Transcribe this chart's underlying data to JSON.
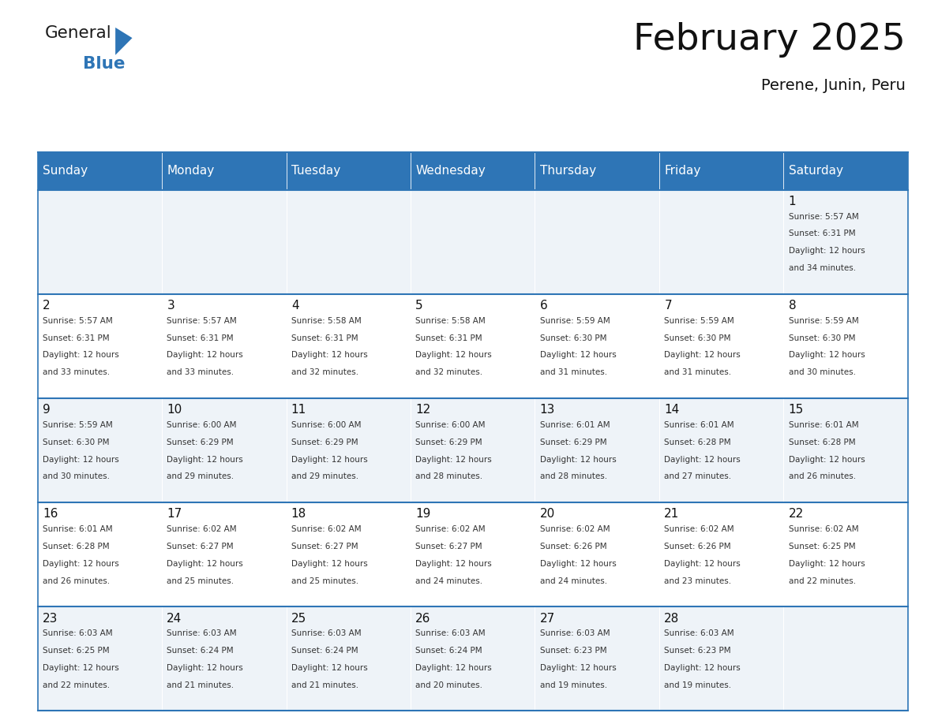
{
  "title": "February 2025",
  "subtitle": "Perene, Junin, Peru",
  "header_bg": "#2E75B6",
  "header_text_color": "#FFFFFF",
  "cell_bg_light": "#EEF3F8",
  "cell_bg_white": "#FFFFFF",
  "separator_color": "#2E75B6",
  "text_color": "#222222",
  "info_color": "#333333",
  "day_headers": [
    "Sunday",
    "Monday",
    "Tuesday",
    "Wednesday",
    "Thursday",
    "Friday",
    "Saturday"
  ],
  "calendar": [
    [
      null,
      null,
      null,
      null,
      null,
      null,
      {
        "day": 1,
        "sunrise": "5:57 AM",
        "sunset": "6:31 PM",
        "daylight1": "12 hours",
        "daylight2": "and 34 minutes."
      }
    ],
    [
      {
        "day": 2,
        "sunrise": "5:57 AM",
        "sunset": "6:31 PM",
        "daylight1": "12 hours",
        "daylight2": "and 33 minutes."
      },
      {
        "day": 3,
        "sunrise": "5:57 AM",
        "sunset": "6:31 PM",
        "daylight1": "12 hours",
        "daylight2": "and 33 minutes."
      },
      {
        "day": 4,
        "sunrise": "5:58 AM",
        "sunset": "6:31 PM",
        "daylight1": "12 hours",
        "daylight2": "and 32 minutes."
      },
      {
        "day": 5,
        "sunrise": "5:58 AM",
        "sunset": "6:31 PM",
        "daylight1": "12 hours",
        "daylight2": "and 32 minutes."
      },
      {
        "day": 6,
        "sunrise": "5:59 AM",
        "sunset": "6:30 PM",
        "daylight1": "12 hours",
        "daylight2": "and 31 minutes."
      },
      {
        "day": 7,
        "sunrise": "5:59 AM",
        "sunset": "6:30 PM",
        "daylight1": "12 hours",
        "daylight2": "and 31 minutes."
      },
      {
        "day": 8,
        "sunrise": "5:59 AM",
        "sunset": "6:30 PM",
        "daylight1": "12 hours",
        "daylight2": "and 30 minutes."
      }
    ],
    [
      {
        "day": 9,
        "sunrise": "5:59 AM",
        "sunset": "6:30 PM",
        "daylight1": "12 hours",
        "daylight2": "and 30 minutes."
      },
      {
        "day": 10,
        "sunrise": "6:00 AM",
        "sunset": "6:29 PM",
        "daylight1": "12 hours",
        "daylight2": "and 29 minutes."
      },
      {
        "day": 11,
        "sunrise": "6:00 AM",
        "sunset": "6:29 PM",
        "daylight1": "12 hours",
        "daylight2": "and 29 minutes."
      },
      {
        "day": 12,
        "sunrise": "6:00 AM",
        "sunset": "6:29 PM",
        "daylight1": "12 hours",
        "daylight2": "and 28 minutes."
      },
      {
        "day": 13,
        "sunrise": "6:01 AM",
        "sunset": "6:29 PM",
        "daylight1": "12 hours",
        "daylight2": "and 28 minutes."
      },
      {
        "day": 14,
        "sunrise": "6:01 AM",
        "sunset": "6:28 PM",
        "daylight1": "12 hours",
        "daylight2": "and 27 minutes."
      },
      {
        "day": 15,
        "sunrise": "6:01 AM",
        "sunset": "6:28 PM",
        "daylight1": "12 hours",
        "daylight2": "and 26 minutes."
      }
    ],
    [
      {
        "day": 16,
        "sunrise": "6:01 AM",
        "sunset": "6:28 PM",
        "daylight1": "12 hours",
        "daylight2": "and 26 minutes."
      },
      {
        "day": 17,
        "sunrise": "6:02 AM",
        "sunset": "6:27 PM",
        "daylight1": "12 hours",
        "daylight2": "and 25 minutes."
      },
      {
        "day": 18,
        "sunrise": "6:02 AM",
        "sunset": "6:27 PM",
        "daylight1": "12 hours",
        "daylight2": "and 25 minutes."
      },
      {
        "day": 19,
        "sunrise": "6:02 AM",
        "sunset": "6:27 PM",
        "daylight1": "12 hours",
        "daylight2": "and 24 minutes."
      },
      {
        "day": 20,
        "sunrise": "6:02 AM",
        "sunset": "6:26 PM",
        "daylight1": "12 hours",
        "daylight2": "and 24 minutes."
      },
      {
        "day": 21,
        "sunrise": "6:02 AM",
        "sunset": "6:26 PM",
        "daylight1": "12 hours",
        "daylight2": "and 23 minutes."
      },
      {
        "day": 22,
        "sunrise": "6:02 AM",
        "sunset": "6:25 PM",
        "daylight1": "12 hours",
        "daylight2": "and 22 minutes."
      }
    ],
    [
      {
        "day": 23,
        "sunrise": "6:03 AM",
        "sunset": "6:25 PM",
        "daylight1": "12 hours",
        "daylight2": "and 22 minutes."
      },
      {
        "day": 24,
        "sunrise": "6:03 AM",
        "sunset": "6:24 PM",
        "daylight1": "12 hours",
        "daylight2": "and 21 minutes."
      },
      {
        "day": 25,
        "sunrise": "6:03 AM",
        "sunset": "6:24 PM",
        "daylight1": "12 hours",
        "daylight2": "and 21 minutes."
      },
      {
        "day": 26,
        "sunrise": "6:03 AM",
        "sunset": "6:24 PM",
        "daylight1": "12 hours",
        "daylight2": "and 20 minutes."
      },
      {
        "day": 27,
        "sunrise": "6:03 AM",
        "sunset": "6:23 PM",
        "daylight1": "12 hours",
        "daylight2": "and 19 minutes."
      },
      {
        "day": 28,
        "sunrise": "6:03 AM",
        "sunset": "6:23 PM",
        "daylight1": "12 hours",
        "daylight2": "and 19 minutes."
      },
      null
    ]
  ]
}
